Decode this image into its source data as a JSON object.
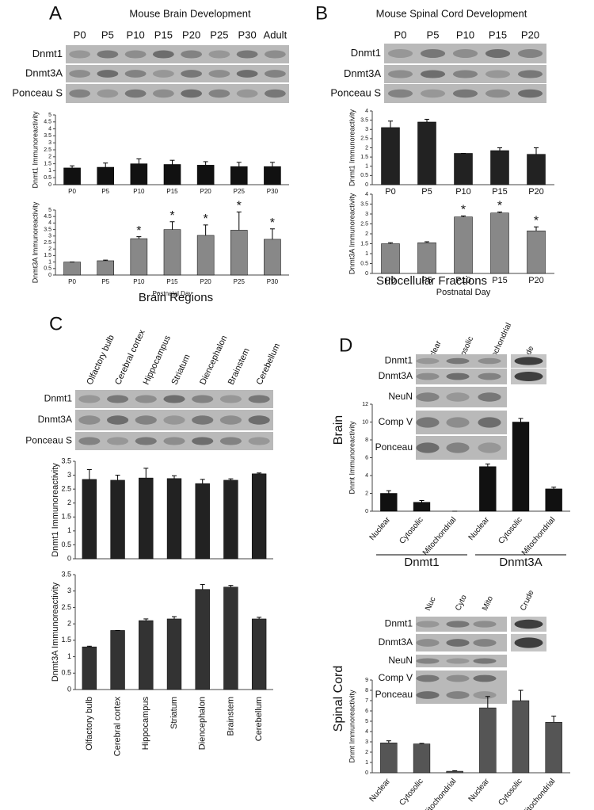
{
  "panels": {
    "A": {
      "label": "A",
      "title": "Mouse Brain Development",
      "lanes": [
        "P0",
        "P5",
        "P10",
        "P15",
        "P20",
        "P25",
        "P30",
        "Adult"
      ],
      "blots": [
        "Dnmt1",
        "Dnmt3A",
        "Ponceau S"
      ]
    },
    "B": {
      "label": "B",
      "title": "Mouse Spinal Cord Development",
      "lanes": [
        "P0",
        "P5",
        "P10",
        "P15",
        "P20"
      ],
      "blots": [
        "Dnmt1",
        "Dnmt3A",
        "Ponceau S"
      ]
    },
    "C": {
      "label": "C",
      "title": "Brain Regions",
      "lanes": [
        "Olfactory bulb",
        "Cerebral cortex",
        "Hippocampus",
        "Striatum",
        "Diencephalon",
        "Brainstem",
        "Cerebellum"
      ],
      "blots": [
        "Dnmt1",
        "Dnmt3A",
        "Ponceau S"
      ]
    },
    "D": {
      "label": "D",
      "title": "Subcellular Fractions",
      "brain": {
        "lanes": [
          "Nuclear",
          "Cytosolic",
          "Mitochondrial",
          "Crude"
        ],
        "blots": [
          "Dnmt1",
          "Dnmt3A",
          "NeuN",
          "Comp V",
          "Ponceau"
        ]
      },
      "spinal": {
        "lanes": [
          "Nuc",
          "Cyto",
          "Mito",
          "Crude"
        ],
        "blots": [
          "Dnmt1",
          "Dnmt3A",
          "NeuN",
          "Comp V",
          "Ponceau"
        ]
      }
    }
  },
  "chart_data": [
    {
      "type": "bar",
      "ylabel": "Dnmt1 Immunoreactivity",
      "categories": [
        "P0",
        "P5",
        "P10",
        "P15",
        "P20",
        "P25",
        "P30"
      ],
      "values": [
        1.2,
        1.25,
        1.5,
        1.45,
        1.4,
        1.3,
        1.3
      ],
      "errors": [
        0.15,
        0.3,
        0.35,
        0.3,
        0.25,
        0.3,
        0.3
      ],
      "color": "#111111",
      "ylim": [
        0,
        5
      ],
      "yticks": [
        0,
        0.5,
        1,
        1.5,
        2,
        2.5,
        3,
        3.5,
        4,
        4.5,
        5
      ]
    },
    {
      "type": "bar",
      "ylabel": "Dnmt3A Immunoreactivity",
      "xlabel": "Postnatal Day",
      "categories": [
        "P0",
        "P5",
        "P10",
        "P15",
        "P20",
        "P25",
        "P30"
      ],
      "values": [
        1.0,
        1.1,
        2.8,
        3.5,
        3.05,
        3.45,
        2.75
      ],
      "errors": [
        0,
        0.05,
        0.15,
        0.6,
        0.8,
        1.4,
        0.8
      ],
      "color": "#888888",
      "ylim": [
        0,
        5
      ],
      "yticks": [
        0,
        0.5,
        1,
        1.5,
        2,
        2.5,
        3,
        3.5,
        4,
        4.5,
        5
      ],
      "annotations": [
        {
          "category": "P10",
          "text": "*"
        },
        {
          "category": "P15",
          "text": "*"
        },
        {
          "category": "P20",
          "text": "*"
        },
        {
          "category": "P25",
          "text": "*"
        },
        {
          "category": "P30",
          "text": "*"
        }
      ]
    },
    {
      "type": "bar",
      "ylabel": "Dnmt1 Immunoreactivity",
      "categories": [
        "P0",
        "P5",
        "P10",
        "P15",
        "P20"
      ],
      "values": [
        3.1,
        3.4,
        1.7,
        1.85,
        1.65
      ],
      "errors": [
        0.35,
        0.15,
        0,
        0.15,
        0.35
      ],
      "color": "#222222",
      "ylim": [
        0,
        4
      ],
      "yticks": [
        0,
        0.5,
        1,
        1.5,
        2,
        2.5,
        3,
        3.5,
        4
      ]
    },
    {
      "type": "bar",
      "ylabel": "Dnmt3A Immunoreactivity",
      "xlabel": "Postnatal Day",
      "categories": [
        "P0",
        "P5",
        "P10",
        "P15",
        "P20"
      ],
      "values": [
        1.5,
        1.55,
        2.85,
        3.05,
        2.15
      ],
      "errors": [
        0.05,
        0.05,
        0.05,
        0.05,
        0.2
      ],
      "color": "#888888",
      "ylim": [
        0,
        4
      ],
      "yticks": [
        0,
        0.5,
        1,
        1.5,
        2,
        2.5,
        3,
        3.5,
        4
      ],
      "annotations": [
        {
          "category": "P10",
          "text": "*"
        },
        {
          "category": "P15",
          "text": "*"
        },
        {
          "category": "P20",
          "text": "*"
        }
      ]
    },
    {
      "type": "bar",
      "ylabel": "Dnmt1 Immunoreactivity",
      "values": [
        2.85,
        2.82,
        2.9,
        2.88,
        2.7,
        2.82,
        3.05
      ],
      "errors": [
        0.35,
        0.18,
        0.35,
        0.1,
        0.15,
        0.05,
        0.03
      ],
      "color": "#222222",
      "ylim": [
        0,
        3.5
      ],
      "yticks": [
        0,
        0.5,
        1,
        1.5,
        2,
        2.5,
        3,
        3.5
      ]
    },
    {
      "type": "bar",
      "ylabel": "Dnmt3A Immunoreactivity",
      "categories": [
        "Olfactory bulb",
        "Cerebral cortex",
        "Hippocampus",
        "Striatum",
        "Diencephalon",
        "Brainstem",
        "Cerebellum"
      ],
      "values": [
        1.3,
        1.8,
        2.1,
        2.15,
        3.05,
        3.12,
        2.15
      ],
      "errors": [
        0.02,
        0,
        0.05,
        0.07,
        0.15,
        0.05,
        0.05
      ],
      "color": "#333333",
      "ylim": [
        0,
        3.5
      ],
      "yticks": [
        0,
        0.5,
        1,
        1.5,
        2,
        2.5,
        3,
        3.5
      ]
    },
    {
      "type": "bar",
      "side_label": "Brain",
      "ylabel": "Dnmt Immunoreactivity",
      "categories": [
        "Nuclear",
        "Cytosolic",
        "Mitochondrial",
        "Nuclear",
        "Cytosolic",
        "Mitochondrial"
      ],
      "groups": [
        "Dnmt1",
        "Dnmt3A"
      ],
      "values": [
        2,
        1,
        0,
        5,
        10,
        2.5
      ],
      "errors": [
        0.3,
        0.2,
        0,
        0.3,
        0.4,
        0.2
      ],
      "color": "#111111",
      "ylim": [
        0,
        12
      ],
      "yticks": [
        0,
        2,
        4,
        6,
        8,
        10,
        12
      ]
    },
    {
      "type": "bar",
      "side_label": "Spinal Cord",
      "ylabel": "Dnmt Immunoreactivity",
      "categories": [
        "Nuclear",
        "Cytosolic",
        "Mitochondrial",
        "Nuclear",
        "Cytosolic",
        "Mitochondrial"
      ],
      "groups": [
        "Dnmt1",
        "Dnmt3A"
      ],
      "values": [
        2.9,
        2.8,
        0.15,
        6.3,
        7,
        4.9
      ],
      "errors": [
        0.2,
        0.05,
        0.05,
        1.1,
        1,
        0.6
      ],
      "color": "#555555",
      "ylim": [
        0,
        9
      ],
      "yticks": [
        0,
        1,
        2,
        3,
        4,
        5,
        6,
        7,
        8,
        9
      ]
    }
  ]
}
